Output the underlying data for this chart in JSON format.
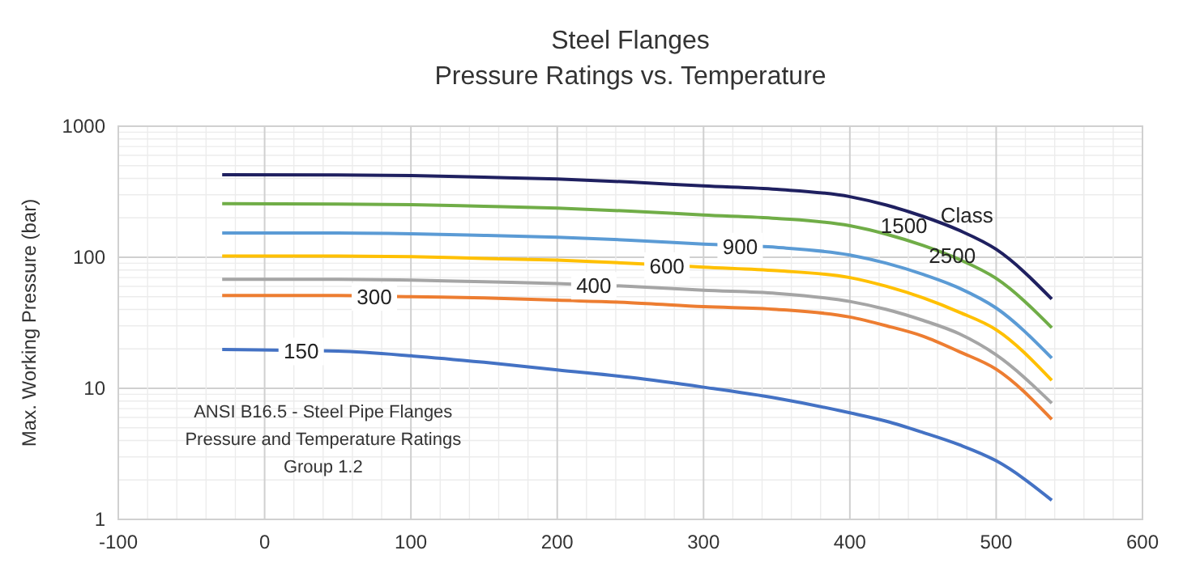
{
  "chart_data": {
    "type": "line",
    "title": "Steel Flanges",
    "subtitle": "Pressure Ratings vs. Temperature",
    "ylabel": "Max. Working Pressure (bar)",
    "legend_title": "Class",
    "annotations": [
      "ANSI B16.5 - Steel Pipe Flanges\nPressure and Temperature Ratings\nGroup 1.2"
    ],
    "x": [
      -29,
      50,
      100,
      150,
      200,
      250,
      300,
      350,
      400,
      425,
      450,
      475,
      500,
      538
    ],
    "series": [
      {
        "name": "150",
        "color": "#4472c4",
        "values": [
          19.8,
          19.2,
          17.7,
          15.8,
          13.8,
          12.1,
          10.2,
          8.4,
          6.5,
          5.6,
          4.6,
          3.7,
          2.8,
          1.4
        ]
      },
      {
        "name": "300",
        "color": "#ed7d31",
        "values": [
          51,
          51,
          50,
          49,
          47,
          45,
          42,
          40,
          35,
          30,
          25,
          19,
          14,
          5.8
        ]
      },
      {
        "name": "400",
        "color": "#a5a5a5",
        "values": [
          68,
          68,
          67,
          65,
          63,
          60,
          56,
          53,
          46,
          40,
          33,
          26,
          18,
          7.7
        ]
      },
      {
        "name": "600",
        "color": "#ffc000",
        "values": [
          102,
          102,
          101,
          98,
          95,
          90,
          84,
          79,
          70,
          60,
          49,
          38,
          28,
          11.5
        ]
      },
      {
        "name": "900",
        "color": "#5b9bd5",
        "values": [
          153,
          153,
          151,
          147,
          142,
          135,
          126,
          119,
          104,
          90,
          74,
          58,
          41,
          17
        ]
      },
      {
        "name": "1500",
        "color": "#70ad47",
        "values": [
          256,
          255,
          252,
          245,
          237,
          225,
          210,
          198,
          174,
          150,
          123,
          96,
          69,
          29
        ]
      },
      {
        "name": "2500",
        "color": "#1f2060",
        "values": [
          426,
          425,
          420,
          408,
          395,
          375,
          350,
          330,
          290,
          250,
          205,
          160,
          115,
          48
        ]
      }
    ],
    "xlim": [
      -100,
      600
    ],
    "xticks": [
      -100,
      0,
      100,
      200,
      300,
      400,
      500,
      600
    ],
    "ylim": [
      1,
      1000
    ],
    "yticks": [
      1,
      10,
      100,
      1000
    ],
    "log": "y",
    "grid": true,
    "line_style": "solid",
    "marker": "none"
  }
}
